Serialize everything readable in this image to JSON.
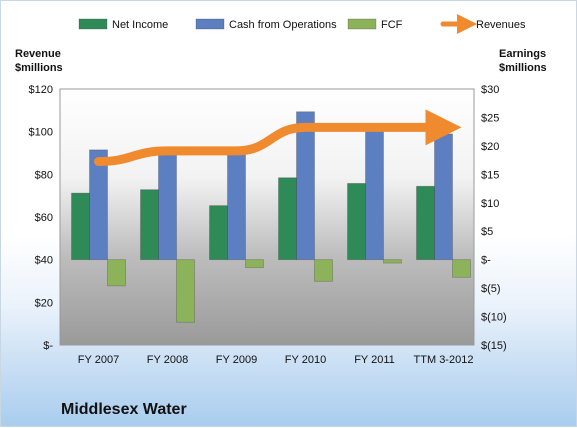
{
  "chart_data": {
    "type": "bar",
    "title": "Middlesex Water",
    "categories": [
      "FY 2007",
      "FY 2008",
      "FY 2009",
      "FY 2010",
      "FY 2011",
      "TTM 3-2012"
    ],
    "y_left": {
      "label_line1": "Revenue",
      "label_line2": "$millions",
      "range": [
        0,
        120
      ],
      "ticks": [
        0,
        20,
        40,
        60,
        80,
        100,
        120
      ],
      "tick_labels": [
        "$-",
        "$20",
        "$40",
        "$60",
        "$80",
        "$100",
        "$120"
      ]
    },
    "y_right": {
      "label_line1": "Earnings",
      "label_line2": "$millions",
      "range": [
        -15,
        30
      ],
      "ticks": [
        -15,
        -10,
        -5,
        0,
        5,
        10,
        15,
        20,
        25,
        30
      ],
      "tick_labels": [
        "$(15)",
        "$(10)",
        "$(5)",
        "$-",
        "$5",
        "$10",
        "$15",
        "$20",
        "$25",
        "$30"
      ]
    },
    "series": [
      {
        "name": "Net Income",
        "axis": "right",
        "kind": "bar",
        "color": "#2e8b57",
        "values": [
          11.7,
          12.3,
          9.5,
          14.4,
          13.4,
          12.9
        ]
      },
      {
        "name": "Cash from Operations",
        "axis": "right",
        "kind": "bar",
        "color": "#5b7fc0",
        "values": [
          19.3,
          19.7,
          18.5,
          26.0,
          22.8,
          22.1
        ]
      },
      {
        "name": "FCF",
        "axis": "right",
        "kind": "bar",
        "color": "#8db35a",
        "values": [
          -4.6,
          -11.0,
          -1.4,
          -3.8,
          -0.6,
          -3.1
        ]
      },
      {
        "name": "Revenues",
        "axis": "left",
        "kind": "line",
        "color": "#f08a2e",
        "values": [
          86,
          91,
          91,
          102,
          102,
          102
        ]
      }
    ],
    "legend_position": "top",
    "grid": false
  }
}
